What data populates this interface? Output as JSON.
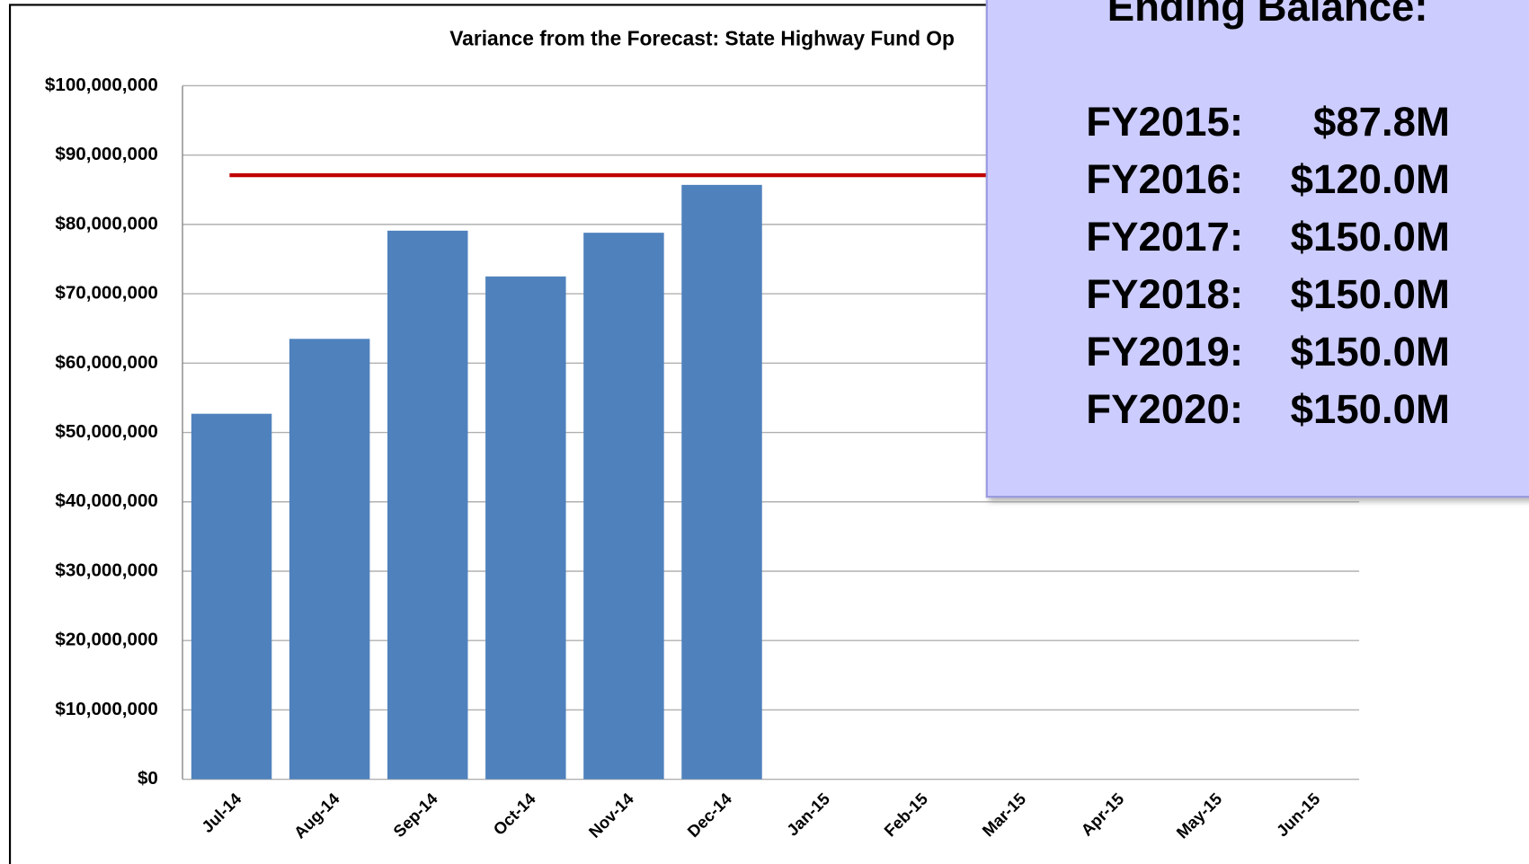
{
  "chart_data": {
    "type": "bar",
    "title": "Variance from the Forecast: State Highway Fund Op",
    "categories": [
      "Jul-14",
      "Aug-14",
      "Sep-14",
      "Oct-14",
      "Nov-14",
      "Dec-14",
      "Jan-15",
      "Feb-15",
      "Mar-15",
      "Apr-15",
      "May-15",
      "Jun-15"
    ],
    "values": [
      52700000,
      63500000,
      79100000,
      72500000,
      78800000,
      85700000,
      null,
      null,
      null,
      null,
      null,
      null
    ],
    "color": "#4f81bd",
    "reference_line": {
      "value": 87100000,
      "color": "#c00000"
    },
    "ylim": [
      0,
      100000000
    ],
    "yticks": [
      {
        "value": 0,
        "label": "$0"
      },
      {
        "value": 10000000,
        "label": "$10,000,000"
      },
      {
        "value": 20000000,
        "label": "$20,000,000"
      },
      {
        "value": 30000000,
        "label": "$30,000,000"
      },
      {
        "value": 40000000,
        "label": "$40,000,000"
      },
      {
        "value": 50000000,
        "label": "$50,000,000"
      },
      {
        "value": 60000000,
        "label": "$60,000,000"
      },
      {
        "value": 70000000,
        "label": "$70,000,000"
      },
      {
        "value": 80000000,
        "label": "$80,000,000"
      },
      {
        "value": 90000000,
        "label": "$90,000,000"
      },
      {
        "value": 100000000,
        "label": "$100,000,000"
      }
    ],
    "grid": true
  },
  "overlay": {
    "title": "Ending Balance:",
    "rows": [
      {
        "year": "FY2015:",
        "amount": "$87.8M"
      },
      {
        "year": "FY2016:",
        "amount": "$120.0M"
      },
      {
        "year": "FY2017:",
        "amount": "$150.0M"
      },
      {
        "year": "FY2018:",
        "amount": "$150.0M"
      },
      {
        "year": "FY2019:",
        "amount": "$150.0M"
      },
      {
        "year": "FY2020:",
        "amount": "$150.0M"
      }
    ]
  }
}
